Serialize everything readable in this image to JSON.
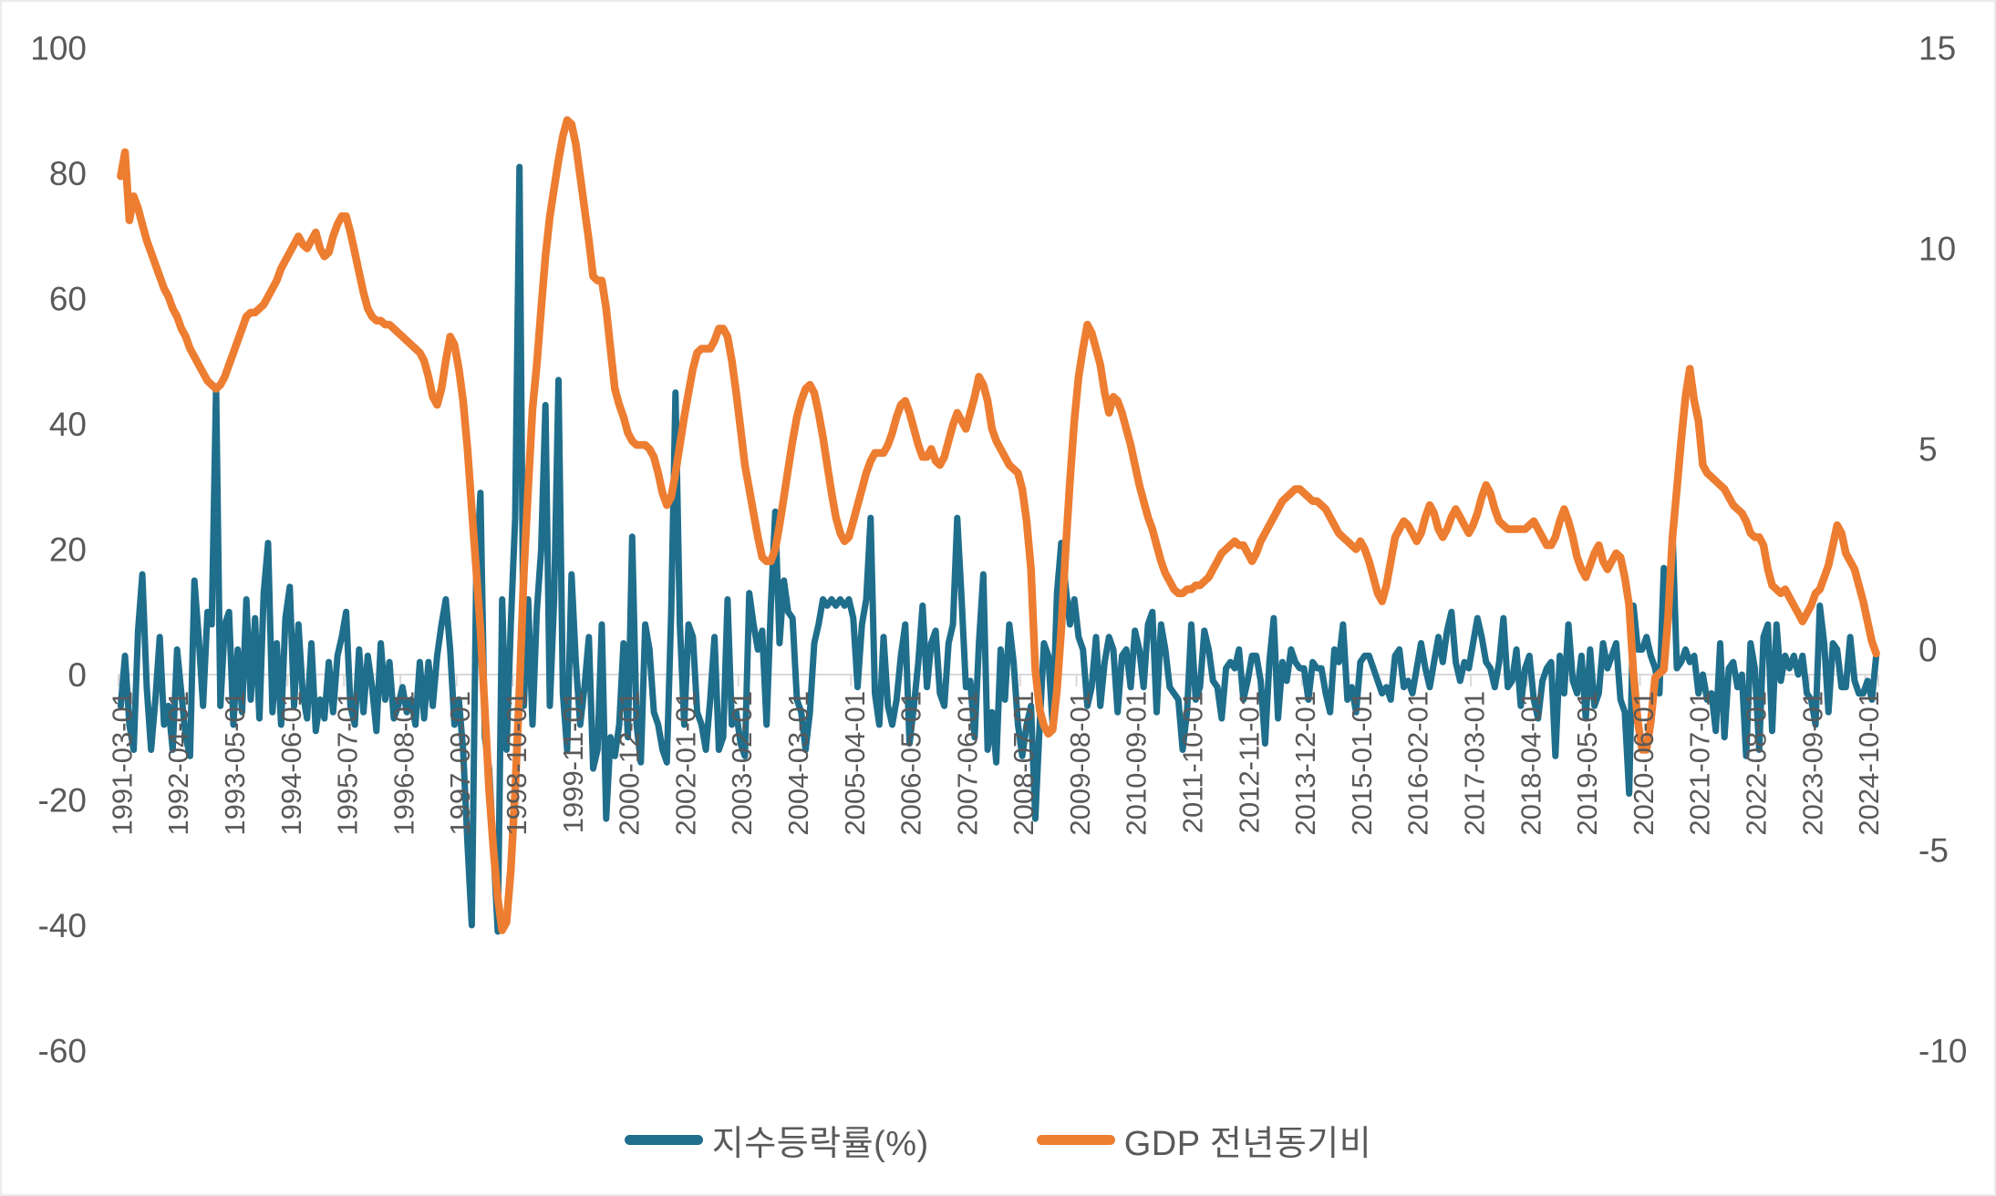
{
  "chart_data": {
    "type": "line",
    "title": "",
    "x_start": "1991-03-01",
    "x_freq": "monthly",
    "x_tick_interval": 13,
    "x_tick_labels": [
      "1991-03-01",
      "1992-04-01",
      "1993-05-01",
      "1994-06-01",
      "1995-07-01",
      "1996-08-01",
      "1997-09-01",
      "1998-10-01",
      "1999-11-01",
      "2000-12-01",
      "2002-01-01",
      "2003-02-01",
      "2004-03-01",
      "2005-04-01",
      "2006-05-01",
      "2007-06-01",
      "2008-07-01",
      "2009-08-01",
      "2010-09-01",
      "2011-10-01",
      "2012-11-01",
      "2013-12-01",
      "2015-01-01",
      "2016-02-01",
      "2017-03-01",
      "2018-04-01",
      "2019-05-01",
      "2020-06-01",
      "2021-07-01",
      "2022-08-01",
      "2023-09-01",
      "2024-10-01"
    ],
    "ylim": [
      -60,
      100
    ],
    "yticks": [
      100,
      80,
      60,
      40,
      20,
      0,
      -20,
      -40,
      -60
    ],
    "y2lim": [
      -10,
      15
    ],
    "y2ticks": [
      15,
      10,
      5,
      0,
      -5,
      -10
    ],
    "grid": "zero-line-only",
    "legend_position": "bottom-center",
    "colors": {
      "index_change": "#1f6e8c",
      "gdp_yoy": "#ed7d31",
      "axis_text": "#595959",
      "axis_line": "#d9d9d9"
    },
    "series": [
      {
        "name": "지수등락률(%)",
        "axis": "left",
        "color": "#1f6e8c",
        "values": [
          -5,
          3,
          -8,
          -12,
          7,
          16,
          -2,
          -12,
          -4,
          6,
          -8,
          -5,
          -12,
          4,
          -3,
          -10,
          -13,
          15,
          6,
          -5,
          10,
          8,
          46,
          -5,
          8,
          10,
          -8,
          4,
          -6,
          12,
          -4,
          9,
          -7,
          13,
          21,
          -6,
          5,
          -8,
          9,
          14,
          -5,
          8,
          -3,
          -7,
          5,
          -9,
          -4,
          -7,
          2,
          -6,
          3,
          6,
          10,
          -5,
          -8,
          4,
          -6,
          3,
          -2,
          -9,
          5,
          -4,
          2,
          -7,
          -5,
          -2,
          -6,
          -4,
          -8,
          2,
          -7,
          2,
          -5,
          3,
          8,
          12,
          4,
          -8,
          -4,
          -12,
          -27,
          -40,
          15,
          29,
          -10,
          -15,
          -28,
          -41,
          12,
          -12,
          8,
          25,
          81,
          -5,
          12,
          -8,
          10,
          20,
          43,
          -5,
          12,
          47,
          -3,
          -12,
          16,
          2,
          -8,
          -2,
          6,
          -15,
          -12,
          8,
          -23,
          -10,
          -13,
          -8,
          5,
          -10,
          22,
          -8,
          -14,
          8,
          4,
          -6,
          -8,
          -12,
          -14,
          10,
          45,
          8,
          -8,
          8,
          6,
          -6,
          -8,
          -12,
          -4,
          6,
          -12,
          -10,
          12,
          -8,
          -6,
          -11,
          -13,
          13,
          8,
          4,
          7,
          -8,
          11,
          26,
          5,
          15,
          10,
          9,
          -4,
          -6,
          -12,
          -6,
          5,
          8,
          12,
          11,
          12,
          11,
          12,
          11,
          12,
          9,
          -2,
          8,
          12,
          25,
          -3,
          -8,
          6,
          -5,
          -8,
          -4,
          3,
          8,
          -11,
          -5,
          2,
          11,
          -2,
          5,
          7,
          -3,
          -5,
          5,
          8,
          25,
          12,
          -2,
          -1,
          -10,
          5,
          16,
          -12,
          -6,
          -14,
          4,
          -4,
          8,
          2,
          -8,
          -13,
          -8,
          -5,
          -23,
          -8,
          5,
          3,
          -8,
          13,
          21,
          14,
          8,
          12,
          6,
          4,
          -5,
          -2,
          6,
          -5,
          2,
          6,
          4,
          -6,
          3,
          4,
          -2,
          7,
          4,
          -2,
          8,
          10,
          -6,
          8,
          4,
          -2,
          -3,
          -4,
          -12,
          -6,
          8,
          -4,
          -2,
          7,
          4,
          -1,
          -2,
          -7,
          1,
          2,
          1,
          4,
          -4,
          -1,
          3,
          3,
          -1,
          -11,
          2,
          9,
          -7,
          2,
          -1,
          4,
          2,
          1,
          1,
          -4,
          2,
          1,
          1,
          -3,
          -6,
          4,
          2,
          8,
          -4,
          -2,
          -6,
          2,
          3,
          3,
          1,
          -1,
          -3,
          -2,
          -4,
          3,
          4,
          -2,
          -1,
          -3,
          1,
          5,
          1,
          -2,
          2,
          6,
          2,
          7,
          10,
          2,
          -1,
          2,
          1,
          5,
          9,
          6,
          2,
          1,
          -2,
          2,
          9,
          -2,
          -1,
          4,
          -5,
          1,
          3,
          -4,
          -7,
          -1,
          1,
          2,
          -13,
          3,
          -3,
          8,
          -1,
          -3,
          3,
          -7,
          4,
          -5,
          -3,
          5,
          1,
          3,
          5,
          -4,
          -6,
          -19,
          11,
          4,
          4,
          6,
          3,
          1,
          -3,
          17,
          11,
          23,
          1,
          2,
          4,
          2,
          3,
          -3,
          0,
          -4,
          -3,
          -9,
          5,
          -10,
          1,
          2,
          -2,
          0,
          -13,
          5,
          1,
          -12,
          6,
          8,
          -9,
          8,
          -1,
          3,
          1,
          3,
          0,
          3,
          -3,
          -4,
          -8,
          11,
          5,
          -6,
          5,
          4,
          -2,
          -2,
          6,
          -1,
          -3,
          -3,
          -1,
          -4,
          3
        ]
      },
      {
        "name": "GDP 전년동기비",
        "axis": "right",
        "color": "#ed7d31",
        "values": [
          11.8,
          12.4,
          10.7,
          11.3,
          11.0,
          10.6,
          10.2,
          9.9,
          9.6,
          9.3,
          9.0,
          8.8,
          8.5,
          8.3,
          8.0,
          7.8,
          7.5,
          7.3,
          7.1,
          6.9,
          6.7,
          6.6,
          6.5,
          6.6,
          6.8,
          7.1,
          7.4,
          7.7,
          8.0,
          8.3,
          8.4,
          8.4,
          8.5,
          8.6,
          8.8,
          9.0,
          9.2,
          9.5,
          9.7,
          9.9,
          10.1,
          10.3,
          10.1,
          10.0,
          10.2,
          10.4,
          10.0,
          9.8,
          9.9,
          10.3,
          10.6,
          10.8,
          10.8,
          10.4,
          9.9,
          9.4,
          8.9,
          8.5,
          8.3,
          8.2,
          8.2,
          8.1,
          8.1,
          8.0,
          7.9,
          7.8,
          7.7,
          7.6,
          7.5,
          7.4,
          7.2,
          6.8,
          6.3,
          6.1,
          6.5,
          7.2,
          7.8,
          7.6,
          7.0,
          6.2,
          5.0,
          3.5,
          2.0,
          0.5,
          -1.5,
          -3.5,
          -5.0,
          -6.2,
          -7.0,
          -6.8,
          -5.5,
          -3.5,
          -1.0,
          1.9,
          4.0,
          6.0,
          7.1,
          8.5,
          9.8,
          10.8,
          11.5,
          12.2,
          12.8,
          13.2,
          13.1,
          12.6,
          11.8,
          11.0,
          10.2,
          9.3,
          9.2,
          9.2,
          8.5,
          7.5,
          6.5,
          6.1,
          5.8,
          5.4,
          5.2,
          5.1,
          5.1,
          5.1,
          5.0,
          4.8,
          4.4,
          3.9,
          3.6,
          3.8,
          4.4,
          5.1,
          5.8,
          6.4,
          7.0,
          7.4,
          7.5,
          7.5,
          7.5,
          7.7,
          8.0,
          8.0,
          7.8,
          7.2,
          6.4,
          5.5,
          4.6,
          4.0,
          3.4,
          2.8,
          2.3,
          2.2,
          2.2,
          2.5,
          3.1,
          3.8,
          4.5,
          5.2,
          5.8,
          6.2,
          6.5,
          6.6,
          6.4,
          5.9,
          5.3,
          4.6,
          3.9,
          3.3,
          2.9,
          2.7,
          2.8,
          3.2,
          3.6,
          4.0,
          4.4,
          4.7,
          4.9,
          4.9,
          4.9,
          5.1,
          5.4,
          5.8,
          6.1,
          6.2,
          5.9,
          5.5,
          5.1,
          4.8,
          4.8,
          5.0,
          4.7,
          4.6,
          4.8,
          5.2,
          5.6,
          5.9,
          5.7,
          5.5,
          5.9,
          6.3,
          6.8,
          6.6,
          6.2,
          5.5,
          5.2,
          5.0,
          4.8,
          4.6,
          4.5,
          4.4,
          4.0,
          3.2,
          2.0,
          -0.5,
          -1.5,
          -1.9,
          -2.1,
          -2.0,
          -1.0,
          0.5,
          2.5,
          4.2,
          5.7,
          6.8,
          7.5,
          8.1,
          7.9,
          7.5,
          7.1,
          6.4,
          5.9,
          6.3,
          6.2,
          5.9,
          5.5,
          5.1,
          4.6,
          4.1,
          3.7,
          3.3,
          3.0,
          2.6,
          2.2,
          1.9,
          1.7,
          1.5,
          1.4,
          1.4,
          1.5,
          1.5,
          1.6,
          1.6,
          1.7,
          1.8,
          2.0,
          2.2,
          2.4,
          2.5,
          2.6,
          2.7,
          2.6,
          2.6,
          2.4,
          2.2,
          2.4,
          2.7,
          2.9,
          3.1,
          3.3,
          3.5,
          3.7,
          3.8,
          3.9,
          4.0,
          4.0,
          3.9,
          3.8,
          3.7,
          3.7,
          3.6,
          3.5,
          3.3,
          3.1,
          2.9,
          2.8,
          2.7,
          2.6,
          2.5,
          2.7,
          2.5,
          2.2,
          1.8,
          1.4,
          1.2,
          1.6,
          2.2,
          2.8,
          3.0,
          3.2,
          3.1,
          2.9,
          2.7,
          2.9,
          3.3,
          3.6,
          3.4,
          3.0,
          2.8,
          3.0,
          3.3,
          3.5,
          3.3,
          3.1,
          2.9,
          3.1,
          3.4,
          3.8,
          4.1,
          3.9,
          3.5,
          3.2,
          3.1,
          3.0,
          3.0,
          3.0,
          3.0,
          3.0,
          3.1,
          3.2,
          3.0,
          2.8,
          2.6,
          2.6,
          2.8,
          3.2,
          3.5,
          3.2,
          2.8,
          2.3,
          2.0,
          1.8,
          2.1,
          2.4,
          2.6,
          2.2,
          2.0,
          2.2,
          2.4,
          2.3,
          1.8,
          1.1,
          -0.6,
          -1.8,
          -2.5,
          -2.5,
          -1.8,
          -0.7,
          -0.6,
          -0.5,
          0.8,
          2.8,
          4.0,
          5.2,
          6.3,
          7.0,
          6.2,
          5.7,
          4.6,
          4.4,
          4.3,
          4.2,
          4.1,
          4.0,
          3.8,
          3.6,
          3.5,
          3.4,
          3.2,
          2.9,
          2.8,
          2.8,
          2.6,
          2.0,
          1.6,
          1.5,
          1.4,
          1.5,
          1.3,
          1.1,
          0.9,
          0.7,
          0.9,
          1.1,
          1.4,
          1.5,
          1.8,
          2.1,
          2.6,
          3.1,
          2.9,
          2.4,
          2.2,
          2.0,
          1.6,
          1.2,
          0.7,
          0.2,
          -0.1
        ]
      }
    ]
  },
  "legend": {
    "item1": "지수등락률(%)",
    "item2": "GDP 전년동기비"
  }
}
